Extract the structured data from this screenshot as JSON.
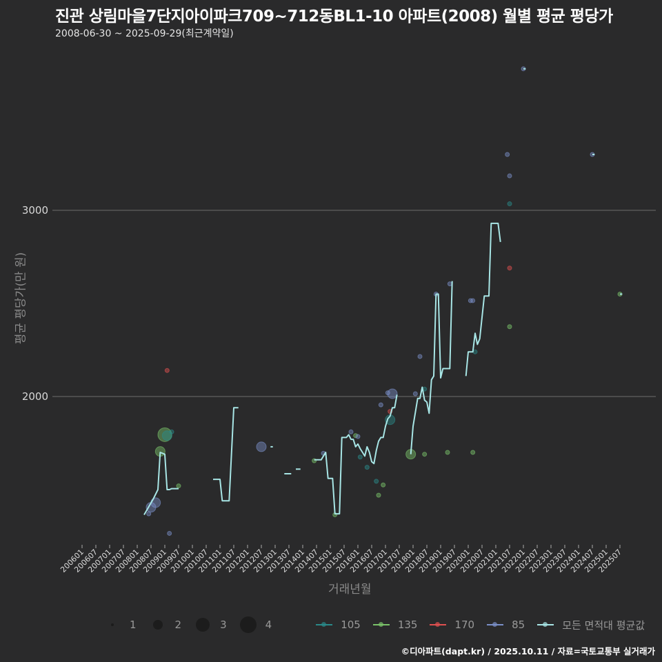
{
  "header": {
    "title": "진관 상림마을7단지아이파크709~712동BL1-10 아파트(2008) 월별 평균 평당가",
    "subtitle": "2008-06-30 ~ 2025-09-29(최근계약일)"
  },
  "axes": {
    "ylabel": "평균 평당가(만 원)",
    "xlabel": "거래년월"
  },
  "footer": "©디아파트(dapt.kr) / 2025.10.11 / 자료=국토교통부 실거래가",
  "legend": {
    "sizes": [
      {
        "label": "1",
        "d": 4
      },
      {
        "label": "2",
        "d": 14
      },
      {
        "label": "3",
        "d": 20
      },
      {
        "label": "4",
        "d": 24
      }
    ],
    "series": [
      {
        "label": "105",
        "color": "#2a8a8a"
      },
      {
        "label": "135",
        "color": "#7ac36a"
      },
      {
        "label": "170",
        "color": "#e05050"
      },
      {
        "label": "85",
        "color": "#7a8fc8"
      },
      {
        "label": "모든 면적대 평균값",
        "color": "#a8e6e6"
      }
    ]
  },
  "chart_data": {
    "type": "line",
    "title": "진관 상림마을7단지아이파크709~712동BL1-10 아파트(2008) 월별 평균 평당가",
    "subtitle": "2008-06-30 ~ 2025-09-29(최근계약일)",
    "xlabel": "거래년월",
    "ylabel": "평균 평당가(만 원)",
    "ylim": [
      1200,
      3880
    ],
    "yticks": [
      2000,
      3000
    ],
    "grid": "horizontal",
    "legend_position": "bottom",
    "x_ticks": [
      "200601",
      "200607",
      "200701",
      "200707",
      "200801",
      "200807",
      "200901",
      "200907",
      "201001",
      "201007",
      "201101",
      "201107",
      "201201",
      "201207",
      "201301",
      "201307",
      "201401",
      "201407",
      "201501",
      "201507",
      "201601",
      "201607",
      "201701",
      "201707",
      "201801",
      "201807",
      "201901",
      "201907",
      "202001",
      "202007",
      "202101",
      "202107",
      "202201",
      "202207",
      "202301",
      "202307",
      "202401",
      "202407",
      "202501",
      "202507"
    ],
    "series": [
      {
        "name": "모든 면적대 평균값",
        "color": "#a8e6e6",
        "segments": [
          [
            [
              "200804",
              1365
            ],
            [
              "200808",
              1450
            ],
            [
              "200810",
              1500
            ],
            [
              "200811",
              1700
            ],
            [
              "200901",
              1690
            ],
            [
              "200902",
              1500
            ],
            [
              "200903",
              1500
            ],
            [
              "200904",
              1505
            ],
            [
              "200907",
              1505
            ]
          ],
          [
            [
              "201010",
              1555
            ],
            [
              "201101",
              1555
            ],
            [
              "201102",
              1440
            ],
            [
              "201105",
              1440
            ],
            [
              "201107",
              1940
            ],
            [
              "201109",
              1940
            ]
          ],
          [
            [
              "201211",
              1730
            ],
            [
              "201212",
              1730
            ]
          ],
          [
            [
              "201305",
              1585
            ],
            [
              "201308",
              1585
            ]
          ],
          [
            [
              "201310",
              1610
            ],
            [
              "201312",
              1610
            ]
          ],
          [
            [
              "201406",
              1660
            ],
            [
              "201409",
              1660
            ],
            [
              "201411",
              1700
            ],
            [
              "201412",
              1560
            ],
            [
              "201502",
              1560
            ],
            [
              "201503",
              1370
            ],
            [
              "201505",
              1370
            ],
            [
              "201506",
              1780
            ],
            [
              "201508",
              1780
            ],
            [
              "201509",
              1795
            ],
            [
              "201510",
              1770
            ],
            [
              "201511",
              1770
            ],
            [
              "201512",
              1730
            ],
            [
              "201601",
              1745
            ],
            [
              "201602",
              1720
            ],
            [
              "201603",
              1700
            ],
            [
              "201604",
              1680
            ],
            [
              "201605",
              1730
            ],
            [
              "201606",
              1700
            ],
            [
              "201607",
              1650
            ],
            [
              "201608",
              1640
            ],
            [
              "201609",
              1710
            ],
            [
              "201610",
              1760
            ],
            [
              "201611",
              1780
            ],
            [
              "201612",
              1780
            ],
            [
              "201701",
              1840
            ],
            [
              "201702",
              1880
            ],
            [
              "201703",
              1895
            ],
            [
              "201704",
              1940
            ],
            [
              "201705",
              1940
            ],
            [
              "201706",
              2010
            ]
          ],
          [
            [
              "201712",
              1690
            ],
            [
              "201801",
              1840
            ],
            [
              "201803",
              1990
            ],
            [
              "201804",
              1990
            ],
            [
              "201805",
              2050
            ],
            [
              "201806",
              1980
            ],
            [
              "201807",
              1970
            ],
            [
              "201808",
              1910
            ],
            [
              "201809",
              2090
            ],
            [
              "201810",
              2110
            ],
            [
              "201811",
              2550
            ],
            [
              "201812",
              2550
            ],
            [
              "201901",
              2100
            ],
            [
              "201902",
              2150
            ],
            [
              "201904",
              2150
            ],
            [
              "201905",
              2150
            ],
            [
              "201906",
              2620
            ]
          ],
          [
            [
              "201912",
              2110
            ],
            [
              "202001",
              2240
            ],
            [
              "202003",
              2240
            ],
            [
              "202004",
              2340
            ],
            [
              "202005",
              2280
            ],
            [
              "202006",
              2310
            ],
            [
              "202008",
              2540
            ],
            [
              "202010",
              2540
            ],
            [
              "202011",
              2930
            ],
            [
              "202101",
              2930
            ],
            [
              "202102",
              2930
            ],
            [
              "202103",
              2830
            ]
          ],
          [
            [
              "202201",
              3760
            ],
            [
              "202202",
              3760
            ]
          ],
          [
            [
              "202407",
              3300
            ],
            [
              "202408",
              3300
            ]
          ],
          [
            [
              "202507",
              2550
            ],
            [
              "202508",
              2550
            ]
          ]
        ]
      }
    ],
    "points": [
      {
        "area": "85",
        "x": "200807",
        "v": 1405,
        "n": 2
      },
      {
        "area": "85",
        "x": "200809",
        "v": 1430,
        "n": 2
      },
      {
        "area": "85",
        "x": "200806",
        "v": 1370,
        "n": 1
      },
      {
        "area": "85",
        "x": "200903",
        "v": 1265,
        "n": 1
      },
      {
        "area": "135",
        "x": "200901",
        "v": 1795,
        "n": 3
      },
      {
        "area": "135",
        "x": "200811",
        "v": 1705,
        "n": 2
      },
      {
        "area": "105",
        "x": "200902",
        "v": 1790,
        "n": 2
      },
      {
        "area": "105",
        "x": "200904",
        "v": 1810,
        "n": 1
      },
      {
        "area": "170",
        "x": "200902",
        "v": 2140,
        "n": 1
      },
      {
        "area": "135",
        "x": "200907",
        "v": 1520,
        "n": 1
      },
      {
        "area": "85",
        "x": "201207",
        "v": 1730,
        "n": 2
      },
      {
        "area": "135",
        "x": "201406",
        "v": 1655,
        "n": 1
      },
      {
        "area": "85",
        "x": "201410",
        "v": 1695,
        "n": 1
      },
      {
        "area": "135",
        "x": "201503",
        "v": 1365,
        "n": 1
      },
      {
        "area": "85",
        "x": "201510",
        "v": 1810,
        "n": 1
      },
      {
        "area": "135",
        "x": "201512",
        "v": 1790,
        "n": 1
      },
      {
        "area": "85",
        "x": "201601",
        "v": 1785,
        "n": 1
      },
      {
        "area": "105",
        "x": "201602",
        "v": 1675,
        "n": 1
      },
      {
        "area": "105",
        "x": "201605",
        "v": 1620,
        "n": 1
      },
      {
        "area": "105",
        "x": "201609",
        "v": 1545,
        "n": 1
      },
      {
        "area": "135",
        "x": "201610",
        "v": 1470,
        "n": 1
      },
      {
        "area": "135",
        "x": "201612",
        "v": 1525,
        "n": 1
      },
      {
        "area": "85",
        "x": "201611",
        "v": 1955,
        "n": 1
      },
      {
        "area": "85",
        "x": "201702",
        "v": 2020,
        "n": 1
      },
      {
        "area": "85",
        "x": "201704",
        "v": 2015,
        "n": 2
      },
      {
        "area": "170",
        "x": "201703",
        "v": 1920,
        "n": 1
      },
      {
        "area": "105",
        "x": "201703",
        "v": 1875,
        "n": 2
      },
      {
        "area": "135",
        "x": "201712",
        "v": 1690,
        "n": 2
      },
      {
        "area": "85",
        "x": "201802",
        "v": 2015,
        "n": 1
      },
      {
        "area": "85",
        "x": "201804",
        "v": 2215,
        "n": 1
      },
      {
        "area": "105",
        "x": "201806",
        "v": 2040,
        "n": 1
      },
      {
        "area": "135",
        "x": "201806",
        "v": 1690,
        "n": 1
      },
      {
        "area": "85",
        "x": "201811",
        "v": 2550,
        "n": 1
      },
      {
        "area": "135",
        "x": "201904",
        "v": 1700,
        "n": 1
      },
      {
        "area": "85",
        "x": "201905",
        "v": 2605,
        "n": 1
      },
      {
        "area": "85",
        "x": "202002",
        "v": 2515,
        "n": 1
      },
      {
        "area": "85",
        "x": "202003",
        "v": 2515,
        "n": 1
      },
      {
        "area": "105",
        "x": "202004",
        "v": 2240,
        "n": 1
      },
      {
        "area": "135",
        "x": "202003",
        "v": 1700,
        "n": 1
      },
      {
        "area": "85",
        "x": "202106",
        "v": 3300,
        "n": 1
      },
      {
        "area": "85",
        "x": "202107",
        "v": 3185,
        "n": 1
      },
      {
        "area": "105",
        "x": "202107",
        "v": 3035,
        "n": 1
      },
      {
        "area": "170",
        "x": "202107",
        "v": 2690,
        "n": 1
      },
      {
        "area": "135",
        "x": "202107",
        "v": 2375,
        "n": 1
      },
      {
        "area": "85",
        "x": "202201",
        "v": 3760,
        "n": 1
      },
      {
        "area": "85",
        "x": "202407",
        "v": 3300,
        "n": 1
      },
      {
        "area": "135",
        "x": "202507",
        "v": 2550,
        "n": 1
      }
    ]
  }
}
